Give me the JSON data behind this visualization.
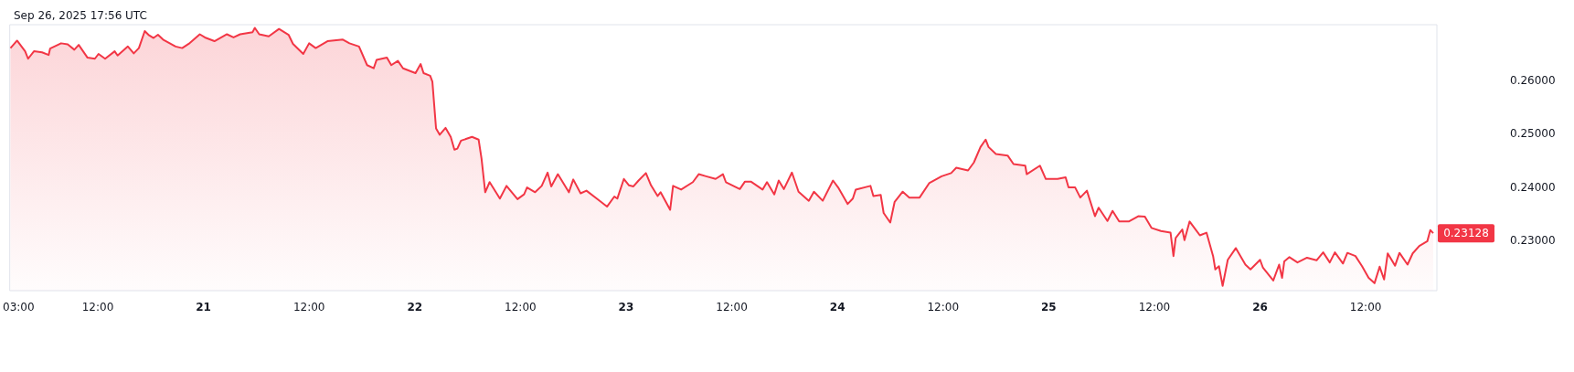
{
  "chart_data": {
    "type": "area",
    "title": "Sep 26, 2025 17:56 UTC",
    "x": [
      "2025-09-20T02:05",
      "2025-09-20T02:50",
      "2025-09-20T03:45",
      "2025-09-20T04:05",
      "2025-09-20T04:45",
      "2025-09-20T05:40",
      "2025-09-20T06:25",
      "2025-09-20T06:35",
      "2025-09-20T07:50",
      "2025-09-20T08:35",
      "2025-09-20T09:20",
      "2025-09-20T09:50",
      "2025-09-20T10:50",
      "2025-09-20T11:40",
      "2025-09-20T12:05",
      "2025-09-20T12:50",
      "2025-09-20T13:55",
      "2025-09-20T14:15",
      "2025-09-20T15:25",
      "2025-09-20T16:05",
      "2025-09-20T16:40",
      "2025-09-20T17:20",
      "2025-09-20T17:45",
      "2025-09-20T18:20",
      "2025-09-20T18:50",
      "2025-09-20T19:25",
      "2025-09-20T20:50",
      "2025-09-20T21:35",
      "2025-09-20T22:20",
      "2025-09-20T23:35",
      "2025-09-21T00:10",
      "2025-09-21T01:15",
      "2025-09-21T02:40",
      "2025-09-21T03:25",
      "2025-09-21T04:10",
      "2025-09-21T05:35",
      "2025-09-21T05:50",
      "2025-09-21T06:20",
      "2025-09-21T07:25",
      "2025-09-21T08:35",
      "2025-09-21T09:40",
      "2025-09-21T10:10",
      "2025-09-21T11:20",
      "2025-09-21T12:00",
      "2025-09-21T12:45",
      "2025-09-21T14:05",
      "2025-09-21T15:50",
      "2025-09-21T16:35",
      "2025-09-21T17:40",
      "2025-09-21T18:35",
      "2025-09-21T19:20",
      "2025-09-21T19:40",
      "2025-09-21T20:50",
      "2025-09-21T21:20",
      "2025-09-21T22:05",
      "2025-09-21T22:40",
      "2025-09-22T00:05",
      "2025-09-22T00:40",
      "2025-09-22T01:00",
      "2025-09-22T01:45",
      "2025-09-22T02:00",
      "2025-09-22T02:25",
      "2025-09-22T02:50",
      "2025-09-22T03:30",
      "2025-09-22T04:05",
      "2025-09-22T04:30",
      "2025-09-22T04:50",
      "2025-09-22T05:15",
      "2025-09-22T06:30",
      "2025-09-22T07:15",
      "2025-09-22T07:35",
      "2025-09-22T08:00",
      "2025-09-22T08:30",
      "2025-09-22T09:40",
      "2025-09-22T10:25",
      "2025-09-22T11:40",
      "2025-09-22T12:25",
      "2025-09-22T12:45",
      "2025-09-22T13:40",
      "2025-09-22T14:25",
      "2025-09-22T15:05",
      "2025-09-22T15:30",
      "2025-09-22T16:15",
      "2025-09-22T17:30",
      "2025-09-22T18:00",
      "2025-09-22T18:50",
      "2025-09-22T19:30",
      "2025-09-22T20:50",
      "2025-09-22T21:50",
      "2025-09-22T22:40",
      "2025-09-22T23:00",
      "2025-09-22T23:45",
      "2025-09-23T00:20",
      "2025-09-23T00:50",
      "2025-09-23T01:25",
      "2025-09-23T02:15",
      "2025-09-23T02:50",
      "2025-09-23T03:35",
      "2025-09-23T03:55",
      "2025-09-23T05:00",
      "2025-09-23T05:20",
      "2025-09-23T06:15",
      "2025-09-23T07:35",
      "2025-09-23T08:15",
      "2025-09-23T09:05",
      "2025-09-23T10:10",
      "2025-09-23T11:00",
      "2025-09-23T11:20",
      "2025-09-23T12:55",
      "2025-09-23T13:30",
      "2025-09-23T14:10",
      "2025-09-23T15:30",
      "2025-09-23T16:00",
      "2025-09-23T16:50",
      "2025-09-23T17:20",
      "2025-09-23T17:55",
      "2025-09-23T18:50",
      "2025-09-23T19:35",
      "2025-09-23T20:45",
      "2025-09-23T21:20",
      "2025-09-23T22:20",
      "2025-09-23T23:30",
      "2025-09-24T00:05",
      "2025-09-24T01:10",
      "2025-09-24T01:45",
      "2025-09-24T02:05",
      "2025-09-24T03:45",
      "2025-09-24T04:05",
      "2025-09-24T04:55",
      "2025-09-24T05:15",
      "2025-09-24T06:00",
      "2025-09-24T06:30",
      "2025-09-24T07:25",
      "2025-09-24T08:10",
      "2025-09-24T09:20",
      "2025-09-24T10:25",
      "2025-09-24T11:50",
      "2025-09-24T12:55",
      "2025-09-24T13:30",
      "2025-09-24T14:50",
      "2025-09-24T15:30",
      "2025-09-24T16:15",
      "2025-09-24T16:50",
      "2025-09-24T17:10",
      "2025-09-24T18:00",
      "2025-09-24T19:20",
      "2025-09-24T20:00",
      "2025-09-24T21:20",
      "2025-09-24T21:30",
      "2025-09-24T23:00",
      "2025-09-24T23:40",
      "2025-09-25T01:00",
      "2025-09-25T01:55",
      "2025-09-25T02:15",
      "2025-09-25T03:00",
      "2025-09-25T03:35",
      "2025-09-25T04:20",
      "2025-09-25T05:15",
      "2025-09-25T05:40",
      "2025-09-25T06:40",
      "2025-09-25T07:15",
      "2025-09-25T08:00",
      "2025-09-25T09:05",
      "2025-09-25T10:10",
      "2025-09-25T10:55",
      "2025-09-25T11:40",
      "2025-09-25T12:45",
      "2025-09-25T13:50",
      "2025-09-25T14:10",
      "2025-09-25T14:25",
      "2025-09-25T15:10",
      "2025-09-25T15:25",
      "2025-09-25T16:00",
      "2025-09-25T17:10",
      "2025-09-25T17:55",
      "2025-09-25T18:40",
      "2025-09-25T18:55",
      "2025-09-25T19:20",
      "2025-09-25T19:45",
      "2025-09-25T20:20",
      "2025-09-25T21:15",
      "2025-09-25T22:20",
      "2025-09-25T22:55",
      "2025-09-26T00:00",
      "2025-09-26T00:20",
      "2025-09-26T01:30",
      "2025-09-26T02:10",
      "2025-09-26T02:30",
      "2025-09-26T02:45",
      "2025-09-26T03:20",
      "2025-09-26T04:15",
      "2025-09-26T05:20",
      "2025-09-26T06:25",
      "2025-09-26T07:10",
      "2025-09-26T07:55",
      "2025-09-26T08:30",
      "2025-09-26T09:25",
      "2025-09-26T09:55",
      "2025-09-26T10:50",
      "2025-09-26T11:35",
      "2025-09-26T12:20",
      "2025-09-26T13:00",
      "2025-09-26T13:35",
      "2025-09-26T14:05",
      "2025-09-26T14:30",
      "2025-09-26T15:20",
      "2025-09-26T15:50",
      "2025-09-26T16:45",
      "2025-09-26T17:20",
      "2025-09-26T18:05",
      "2025-09-26T19:00",
      "2025-09-26T19:20",
      "2025-09-26T19:40"
    ],
    "series": [
      {
        "color": "#f23645",
        "values": [
          0.2661,
          0.2675,
          0.2655,
          0.2641,
          0.2655,
          0.2653,
          0.2648,
          0.266,
          0.267,
          0.2668,
          0.2658,
          0.2667,
          0.2643,
          0.2641,
          0.265,
          0.2641,
          0.2655,
          0.2647,
          0.2664,
          0.2651,
          0.2661,
          0.2693,
          0.2686,
          0.268,
          0.2686,
          0.2677,
          0.2664,
          0.2661,
          0.2669,
          0.2687,
          0.2681,
          0.2674,
          0.2687,
          0.2681,
          0.2687,
          0.2691,
          0.2699,
          0.2687,
          0.2683,
          0.2697,
          0.2686,
          0.2669,
          0.265,
          0.267,
          0.2661,
          0.2674,
          0.2677,
          0.267,
          0.2664,
          0.2629,
          0.2623,
          0.2639,
          0.2643,
          0.2629,
          0.2637,
          0.2623,
          0.2614,
          0.2631,
          0.2614,
          0.2609,
          0.2598,
          0.251,
          0.2498,
          0.2511,
          0.2494,
          0.247,
          0.2472,
          0.2487,
          0.2494,
          0.2489,
          0.2453,
          0.239,
          0.2409,
          0.2378,
          0.2402,
          0.2377,
          0.2386,
          0.2399,
          0.239,
          0.2402,
          0.2427,
          0.2401,
          0.2424,
          0.239,
          0.2414,
          0.2388,
          0.2393,
          0.2376,
          0.2363,
          0.2382,
          0.2378,
          0.2415,
          0.2403,
          0.2401,
          0.2412,
          0.2426,
          0.2403,
          0.2383,
          0.239,
          0.2357,
          0.2402,
          0.2395,
          0.2409,
          0.2424,
          0.242,
          0.2415,
          0.2424,
          0.2409,
          0.2396,
          0.241,
          0.241,
          0.2395,
          0.2409,
          0.2386,
          0.2412,
          0.2396,
          0.2427,
          0.2391,
          0.2374,
          0.2391,
          0.2374,
          0.2412,
          0.2399,
          0.2368,
          0.2378,
          0.2395,
          0.2402,
          0.2383,
          0.2385,
          0.2351,
          0.2333,
          0.2372,
          0.2391,
          0.238,
          0.238,
          0.2407,
          0.242,
          0.2426,
          0.2436,
          0.2431,
          0.2446,
          0.2475,
          0.2489,
          0.2475,
          0.2462,
          0.2459,
          0.2443,
          0.244,
          0.2424,
          0.244,
          0.2415,
          0.2415,
          0.2418,
          0.2399,
          0.2399,
          0.238,
          0.2393,
          0.2345,
          0.2361,
          0.2336,
          0.2355,
          0.2335,
          0.2335,
          0.2345,
          0.2344,
          0.2323,
          0.2317,
          0.2314,
          0.227,
          0.2304,
          0.232,
          0.23,
          0.2335,
          0.2309,
          0.2314,
          0.227,
          0.2245,
          0.2251,
          0.2214,
          0.2263,
          0.2285,
          0.2254,
          0.2245,
          0.2263,
          0.2248,
          0.2224,
          0.2254,
          0.2229,
          0.226,
          0.2268,
          0.2258,
          0.2267,
          0.2262,
          0.2277,
          0.2258,
          0.2277,
          0.2256,
          0.2276,
          0.227,
          0.2251,
          0.2229,
          0.2219,
          0.225,
          0.2226,
          0.2275,
          0.2252,
          0.2276,
          0.2254,
          0.2275,
          0.2289,
          0.2298,
          0.2319,
          0.2313
        ]
      }
    ],
    "xlim": [
      "2025-09-20T02:00",
      "2025-09-26T20:05"
    ],
    "xticks": [
      {
        "value": "2025-09-20T03:00",
        "label": "03:00"
      },
      {
        "value": "2025-09-20T12:00",
        "label": "12:00"
      },
      {
        "value": "2025-09-21",
        "label": "21"
      },
      {
        "value": "2025-09-21T12:00",
        "label": "12:00"
      },
      {
        "value": "2025-09-22",
        "label": "22"
      },
      {
        "value": "2025-09-22T12:00",
        "label": "12:00"
      },
      {
        "value": "2025-09-23",
        "label": "23"
      },
      {
        "value": "2025-09-23T12:00",
        "label": "12:00"
      },
      {
        "value": "2025-09-24",
        "label": "24"
      },
      {
        "value": "2025-09-24T12:00",
        "label": "12:00"
      },
      {
        "value": "2025-09-25",
        "label": "25"
      },
      {
        "value": "2025-09-25T12:00",
        "label": "12:00"
      },
      {
        "value": "2025-09-26",
        "label": "26"
      },
      {
        "value": "2025-09-26T12:00",
        "label": "12:00"
      }
    ],
    "ylim": [
      0.2205,
      0.2705
    ],
    "yticks": [
      {
        "value": 0.23,
        "label": "0.23000"
      },
      {
        "value": 0.24,
        "label": "0.24000"
      },
      {
        "value": 0.25,
        "label": "0.25000"
      },
      {
        "value": 0.26,
        "label": "0.26000"
      }
    ],
    "annotations": [
      {
        "text": "0.23128",
        "x": "2025-09-26T19:40",
        "y": 0.23128
      }
    ],
    "grid": false
  }
}
